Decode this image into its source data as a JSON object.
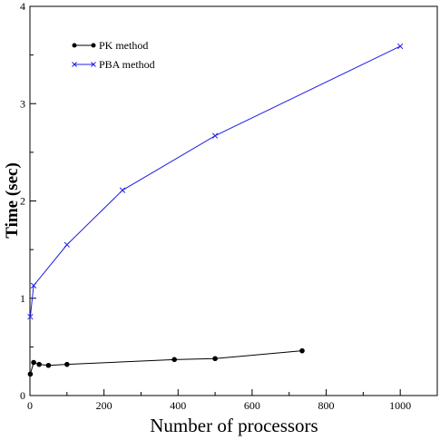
{
  "chart_data": {
    "type": "line",
    "title": "",
    "xlabel": "Number of processors",
    "ylabel": "Time (sec)",
    "xlim": [
      0,
      1100
    ],
    "ylim": [
      0,
      4
    ],
    "x_ticks": [
      0,
      200,
      400,
      600,
      800,
      1000
    ],
    "y_ticks": [
      0,
      1,
      2,
      3,
      4
    ],
    "grid": false,
    "legend_position": "top-left",
    "series": [
      {
        "name": "PK method",
        "color": "#000000",
        "marker": "circle",
        "points": [
          {
            "x": 1,
            "y": 0.22
          },
          {
            "x": 10,
            "y": 0.34
          },
          {
            "x": 25,
            "y": 0.32
          },
          {
            "x": 50,
            "y": 0.31
          },
          {
            "x": 100,
            "y": 0.32
          },
          {
            "x": 390,
            "y": 0.37
          },
          {
            "x": 500,
            "y": 0.38
          },
          {
            "x": 735,
            "y": 0.46
          }
        ]
      },
      {
        "name": "PBA method",
        "color": "#1f1fe6",
        "marker": "x",
        "points": [
          {
            "x": 1,
            "y": 0.81
          },
          {
            "x": 10,
            "y": 1.13
          },
          {
            "x": 100,
            "y": 1.55
          },
          {
            "x": 250,
            "y": 2.11
          },
          {
            "x": 500,
            "y": 2.67
          },
          {
            "x": 1000,
            "y": 3.59
          }
        ]
      }
    ]
  }
}
